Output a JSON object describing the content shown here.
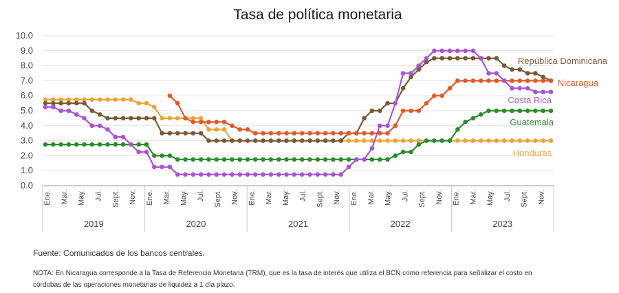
{
  "chart_data": {
    "type": "line",
    "title": "Tasa de política monetaria",
    "ylim": [
      0,
      10
    ],
    "yticks": [
      "0.0",
      "1.0",
      "2.0",
      "3.0",
      "4.0",
      "5.0",
      "6.0",
      "7.0",
      "8.0",
      "9.0",
      "10.0"
    ],
    "month_labels": [
      "Ene.",
      "Mar.",
      "May.",
      "Jul.",
      "Sept.",
      "Nov."
    ],
    "years": [
      "2019",
      "2020",
      "2021",
      "2022",
      "2023"
    ],
    "grid": "horizontal",
    "series": [
      {
        "name": "República Dominicana",
        "color": "#7a5a36",
        "values": [
          5.5,
          5.5,
          5.5,
          5.5,
          5.5,
          5.5,
          5.0,
          4.75,
          4.5,
          4.5,
          4.5,
          4.5,
          4.5,
          4.5,
          4.5,
          3.5,
          3.5,
          3.5,
          3.5,
          3.5,
          3.5,
          3.0,
          3.0,
          3.0,
          3.0,
          3.0,
          3.0,
          3.0,
          3.0,
          3.0,
          3.0,
          3.0,
          3.0,
          3.0,
          3.0,
          3.0,
          3.0,
          3.0,
          3.0,
          3.5,
          3.5,
          4.5,
          5.0,
          5.0,
          5.5,
          5.5,
          6.5,
          7.25,
          7.75,
          8.25,
          8.5,
          8.5,
          8.5,
          8.5,
          8.5,
          8.5,
          8.5,
          8.5,
          8.5,
          8.0,
          7.75,
          7.75,
          7.5,
          7.5,
          7.25,
          7.0
        ]
      },
      {
        "name": "Nicaragua",
        "color": "#e15a27",
        "values": [
          null,
          null,
          null,
          null,
          null,
          null,
          null,
          null,
          null,
          null,
          null,
          null,
          null,
          null,
          null,
          null,
          6.0,
          5.5,
          4.5,
          4.25,
          4.25,
          4.25,
          4.25,
          4.25,
          4.0,
          3.75,
          3.75,
          3.5,
          3.5,
          3.5,
          3.5,
          3.5,
          3.5,
          3.5,
          3.5,
          3.5,
          3.5,
          3.5,
          3.5,
          3.5,
          3.5,
          3.5,
          3.5,
          3.5,
          3.5,
          4.0,
          5.0,
          5.0,
          5.0,
          5.5,
          6.0,
          6.0,
          6.5,
          7.0,
          7.0,
          7.0,
          7.0,
          7.0,
          7.0,
          7.0,
          7.0,
          7.0,
          7.0,
          7.0,
          7.0,
          7.0
        ]
      },
      {
        "name": "Costa Rica",
        "color": "#a855d4",
        "values": [
          5.25,
          5.25,
          5.0,
          5.0,
          4.75,
          4.5,
          4.0,
          4.0,
          3.75,
          3.25,
          3.25,
          2.75,
          2.25,
          2.25,
          1.25,
          1.25,
          1.25,
          0.75,
          0.75,
          0.75,
          0.75,
          0.75,
          0.75,
          0.75,
          0.75,
          0.75,
          0.75,
          0.75,
          0.75,
          0.75,
          0.75,
          0.75,
          0.75,
          0.75,
          0.75,
          0.75,
          0.75,
          0.75,
          0.75,
          1.25,
          1.75,
          1.75,
          2.5,
          4.0,
          4.0,
          5.5,
          7.5,
          7.5,
          8.0,
          8.5,
          9.0,
          9.0,
          9.0,
          9.0,
          9.0,
          9.0,
          8.5,
          7.5,
          7.5,
          7.0,
          6.5,
          6.5,
          6.5,
          6.25,
          6.25,
          6.25
        ]
      },
      {
        "name": "Guatemala",
        "color": "#2e8b2e",
        "values": [
          2.75,
          2.75,
          2.75,
          2.75,
          2.75,
          2.75,
          2.75,
          2.75,
          2.75,
          2.75,
          2.75,
          2.75,
          2.75,
          2.75,
          2.0,
          2.0,
          2.0,
          1.75,
          1.75,
          1.75,
          1.75,
          1.75,
          1.75,
          1.75,
          1.75,
          1.75,
          1.75,
          1.75,
          1.75,
          1.75,
          1.75,
          1.75,
          1.75,
          1.75,
          1.75,
          1.75,
          1.75,
          1.75,
          1.75,
          1.75,
          1.75,
          1.75,
          1.75,
          1.75,
          1.75,
          2.0,
          2.25,
          2.25,
          2.75,
          3.0,
          3.0,
          3.0,
          3.0,
          3.75,
          4.25,
          4.5,
          4.75,
          5.0,
          5.0,
          5.0,
          5.0,
          5.0,
          5.0,
          5.0,
          5.0,
          5.0
        ]
      },
      {
        "name": "Honduras",
        "color": "#f0a33a",
        "values": [
          5.75,
          5.75,
          5.75,
          5.75,
          5.75,
          5.75,
          5.75,
          5.75,
          5.75,
          5.75,
          5.75,
          5.75,
          5.5,
          5.5,
          5.25,
          4.5,
          4.5,
          4.5,
          4.5,
          4.5,
          4.5,
          3.75,
          3.75,
          3.75,
          3.0,
          3.0,
          3.0,
          3.0,
          3.0,
          3.0,
          3.0,
          3.0,
          3.0,
          3.0,
          3.0,
          3.0,
          3.0,
          3.0,
          3.0,
          3.0,
          3.0,
          3.0,
          3.0,
          3.0,
          3.0,
          3.0,
          3.0,
          3.0,
          3.0,
          3.0,
          3.0,
          3.0,
          3.0,
          3.0,
          3.0,
          3.0,
          3.0,
          3.0,
          3.0,
          3.0,
          3.0,
          3.0,
          3.0,
          3.0,
          3.0,
          3.0
        ]
      }
    ]
  },
  "footer": {
    "source": "Fuente: Comunicados de los bancos centrales.",
    "note": "NOTA: En Nicaragua corresponde a la Tasa de Referencia Monetaria (TRM), que es la tasa de interés que utiliza el BCN como referencia para señalizar el costo en córdobas de las operaciones monetarias de liquidez a 1 día plazo."
  }
}
